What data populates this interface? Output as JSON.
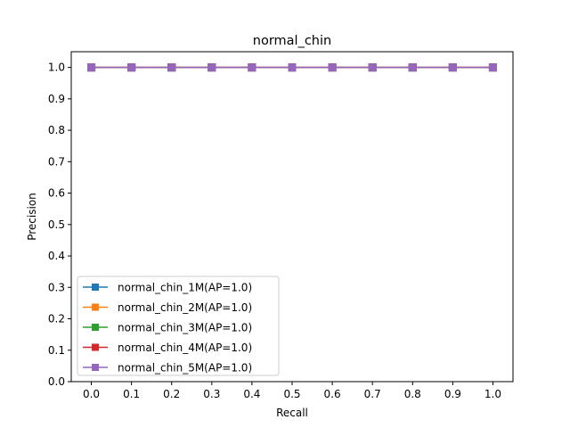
{
  "chart_data": {
    "type": "line",
    "title": "normal_chin",
    "xlabel": "Recall",
    "ylabel": "Precision",
    "xlim": [
      -0.05,
      1.05
    ],
    "ylim": [
      0.0,
      1.05
    ],
    "xticks": [
      "0.0",
      "0.1",
      "0.2",
      "0.3",
      "0.4",
      "0.5",
      "0.6",
      "0.7",
      "0.8",
      "0.9",
      "1.0"
    ],
    "yticks": [
      "0.0",
      "0.1",
      "0.2",
      "0.3",
      "0.4",
      "0.5",
      "0.6",
      "0.7",
      "0.8",
      "0.9",
      "1.0"
    ],
    "grid": false,
    "legend_position": "lower-left",
    "marker": "square",
    "x": [
      0.0,
      0.1,
      0.2,
      0.3,
      0.4,
      0.5,
      0.6,
      0.7,
      0.8,
      0.9,
      1.0
    ],
    "series": [
      {
        "name": "normal_chin_1M(AP=1.0)",
        "color": "#1f77b4",
        "values": [
          1.0,
          1.0,
          1.0,
          1.0,
          1.0,
          1.0,
          1.0,
          1.0,
          1.0,
          1.0,
          1.0
        ]
      },
      {
        "name": "normal_chin_2M(AP=1.0)",
        "color": "#ff7f0e",
        "values": [
          1.0,
          1.0,
          1.0,
          1.0,
          1.0,
          1.0,
          1.0,
          1.0,
          1.0,
          1.0,
          1.0
        ]
      },
      {
        "name": "normal_chin_3M(AP=1.0)",
        "color": "#2ca02c",
        "values": [
          1.0,
          1.0,
          1.0,
          1.0,
          1.0,
          1.0,
          1.0,
          1.0,
          1.0,
          1.0,
          1.0
        ]
      },
      {
        "name": "normal_chin_4M(AP=1.0)",
        "color": "#d62728",
        "values": [
          1.0,
          1.0,
          1.0,
          1.0,
          1.0,
          1.0,
          1.0,
          1.0,
          1.0,
          1.0,
          1.0
        ]
      },
      {
        "name": "normal_chin_5M(AP=1.0)",
        "color": "#9467bd",
        "values": [
          1.0,
          1.0,
          1.0,
          1.0,
          1.0,
          1.0,
          1.0,
          1.0,
          1.0,
          1.0,
          1.0
        ]
      }
    ]
  }
}
